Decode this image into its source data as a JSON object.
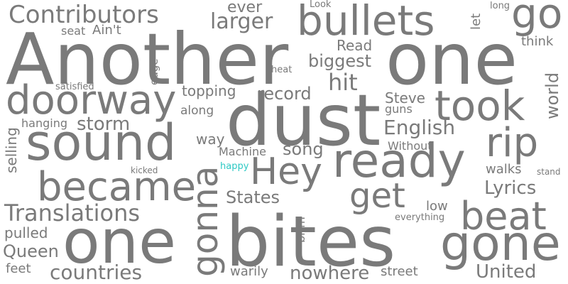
{
  "colors": {
    "default": "#7a7a7a",
    "accent": "#2ec9c4",
    "background": "#ffffff"
  },
  "words": [
    {
      "id": "another",
      "text": "Another"
    },
    {
      "id": "one-top",
      "text": "one"
    },
    {
      "id": "one-bottom",
      "text": "one"
    },
    {
      "id": "bites",
      "text": "bites"
    },
    {
      "id": "dust",
      "text": "dust"
    },
    {
      "id": "sound",
      "text": "sound"
    },
    {
      "id": "ready",
      "text": "ready"
    },
    {
      "id": "bullets",
      "text": "bullets"
    },
    {
      "id": "go",
      "text": "go"
    },
    {
      "id": "gone",
      "text": "gone"
    },
    {
      "id": "became",
      "text": "became"
    },
    {
      "id": "doorway",
      "text": "doorway"
    },
    {
      "id": "took",
      "text": "took"
    },
    {
      "id": "hey",
      "text": "Hey"
    },
    {
      "id": "gonna",
      "text": "gonna"
    },
    {
      "id": "get",
      "text": "get"
    },
    {
      "id": "beat",
      "text": "beat"
    },
    {
      "id": "rip",
      "text": "rip"
    },
    {
      "id": "contributors",
      "text": "Contributors"
    },
    {
      "id": "translations",
      "text": "Translations"
    },
    {
      "id": "larger",
      "text": "larger"
    },
    {
      "id": "ever",
      "text": "ever"
    },
    {
      "id": "aint",
      "text": "Ain't"
    },
    {
      "id": "seat",
      "text": "seat"
    },
    {
      "id": "look",
      "text": "Look"
    },
    {
      "id": "let",
      "text": "let"
    },
    {
      "id": "long",
      "text": "long"
    },
    {
      "id": "read",
      "text": "Read"
    },
    {
      "id": "think",
      "text": "think"
    },
    {
      "id": "biggest",
      "text": "biggest"
    },
    {
      "id": "heat",
      "text": "heat"
    },
    {
      "id": "edge",
      "text": "edge"
    },
    {
      "id": "hit",
      "text": "hit"
    },
    {
      "id": "satisfied",
      "text": "satisfied"
    },
    {
      "id": "topping",
      "text": "topping"
    },
    {
      "id": "record",
      "text": "record"
    },
    {
      "id": "world",
      "text": "world"
    },
    {
      "id": "steve",
      "text": "Steve"
    },
    {
      "id": "guns",
      "text": "guns"
    },
    {
      "id": "along",
      "text": "along"
    },
    {
      "id": "hanging",
      "text": "hanging"
    },
    {
      "id": "storm",
      "text": "storm"
    },
    {
      "id": "english",
      "text": "English"
    },
    {
      "id": "selling",
      "text": "selling"
    },
    {
      "id": "way",
      "text": "way"
    },
    {
      "id": "song",
      "text": "song"
    },
    {
      "id": "without",
      "text": "Without"
    },
    {
      "id": "machine",
      "text": "Machine"
    },
    {
      "id": "kicked",
      "text": "kicked"
    },
    {
      "id": "happy",
      "text": "happy"
    },
    {
      "id": "walks",
      "text": "walks"
    },
    {
      "id": "stand",
      "text": "stand"
    },
    {
      "id": "lyrics",
      "text": "Lyrics"
    },
    {
      "id": "states",
      "text": "States"
    },
    {
      "id": "low",
      "text": "low"
    },
    {
      "id": "everything",
      "text": "everything"
    },
    {
      "id": "brim",
      "text": "brim"
    },
    {
      "id": "pulled",
      "text": "pulled"
    },
    {
      "id": "queen",
      "text": "Queen"
    },
    {
      "id": "feet",
      "text": "feet"
    },
    {
      "id": "countries",
      "text": "countries"
    },
    {
      "id": "warily",
      "text": "warily"
    },
    {
      "id": "nowhere",
      "text": "nowhere"
    },
    {
      "id": "street",
      "text": "street"
    },
    {
      "id": "united",
      "text": "United"
    }
  ]
}
